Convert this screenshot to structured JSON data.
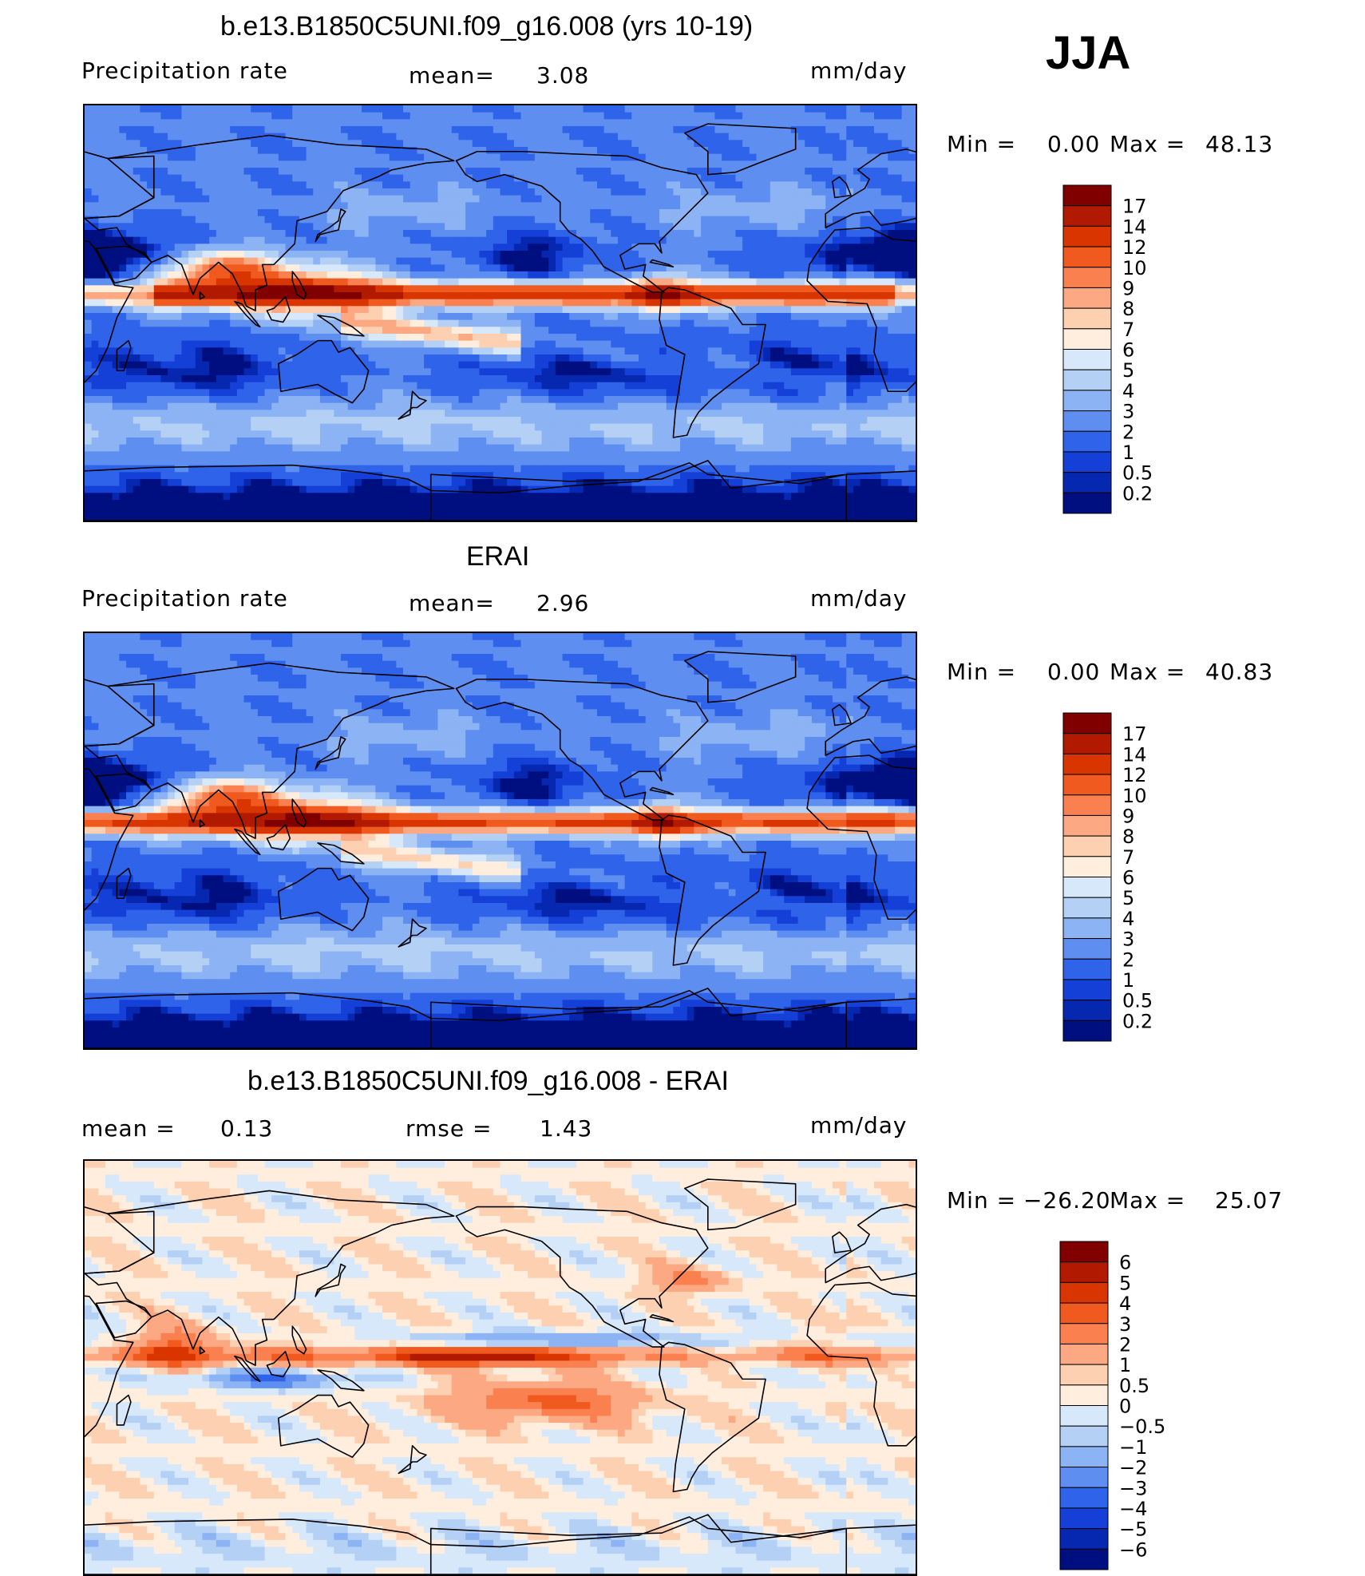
{
  "season": "JJA",
  "panels": [
    {
      "title": "b.e13.B1850C5UNI.f09_g16.008 (yrs 10-19)",
      "left_label": "Precipitation rate",
      "center_label": "mean=",
      "center_value": "3.08",
      "units": "mm/day",
      "min_label": "Min =",
      "min_value": "0.00",
      "max_label": "Max =",
      "max_value": "48.13"
    },
    {
      "title": "ERAI",
      "left_label": "Precipitation rate",
      "center_label": "mean=",
      "center_value": "2.96",
      "units": "mm/day",
      "min_label": "Min =",
      "min_value": "0.00",
      "max_label": "Max =",
      "max_value": "40.83"
    },
    {
      "title": "b.e13.B1850C5UNI.f09_g16.008 - ERAI",
      "left_label": "mean =",
      "left_value": "0.13",
      "center_label": "rmse =",
      "center_value": "1.43",
      "units": "mm/day",
      "min_label": "Min =",
      "min_value": "−26.20",
      "max_label": "Max =",
      "max_value": "25.07"
    }
  ],
  "chart_data": [
    {
      "type": "heatmap",
      "variable": "Precipitation rate",
      "units": "mm/day",
      "mean": 3.08,
      "min": 0.0,
      "max": 48.13,
      "colorbar_levels": [
        "17",
        "14",
        "12",
        "10",
        "9",
        "8",
        "7",
        "6",
        "5",
        "4",
        "3",
        "2",
        "1",
        "0.5",
        "0.2"
      ],
      "colorbar_colors": [
        "#800000",
        "#b21a00",
        "#d93500",
        "#f05a1e",
        "#fb8050",
        "#fca882",
        "#fdd0b2",
        "#ffeedd",
        "#d6e8fa",
        "#b4d0f5",
        "#8cb3f3",
        "#5e8ef0",
        "#2f63ea",
        "#1440d8",
        "#0627b0",
        "#000f80"
      ],
      "features": [
        "ITCZ band along ~10N across Pacific and Atlantic",
        "South Asian monsoon maximum",
        "SPCZ band over South Pacific"
      ]
    },
    {
      "type": "heatmap",
      "variable": "Precipitation rate",
      "units": "mm/day",
      "mean": 2.96,
      "min": 0.0,
      "max": 40.83,
      "colorbar_levels": [
        "17",
        "14",
        "12",
        "10",
        "9",
        "8",
        "7",
        "6",
        "5",
        "4",
        "3",
        "2",
        "1",
        "0.5",
        "0.2"
      ],
      "colorbar_colors": [
        "#800000",
        "#b21a00",
        "#d93500",
        "#f05a1e",
        "#fb8050",
        "#fca882",
        "#fdd0b2",
        "#ffeedd",
        "#d6e8fa",
        "#b4d0f5",
        "#8cb3f3",
        "#5e8ef0",
        "#2f63ea",
        "#1440d8",
        "#0627b0",
        "#000f80"
      ],
      "features": [
        "ITCZ band along ~10N",
        "South Asian monsoon maximum",
        "Central Africa rain belt"
      ]
    },
    {
      "type": "heatmap",
      "variable": "difference",
      "units": "mm/day",
      "mean": 0.13,
      "rmse": 1.43,
      "min": -26.2,
      "max": 25.07,
      "colorbar_levels": [
        "6",
        "5",
        "4",
        "3",
        "2",
        "1",
        "0.5",
        "0",
        "−0.5",
        "−1",
        "−2",
        "−3",
        "−4",
        "−5",
        "−6"
      ],
      "colorbar_colors": [
        "#800000",
        "#b21a00",
        "#d93500",
        "#f05a1e",
        "#fb8050",
        "#fca882",
        "#fdd0b2",
        "#ffeedd",
        "#d6e8fa",
        "#b4d0f5",
        "#8cb3f3",
        "#5e8ef0",
        "#2f63ea",
        "#1440d8",
        "#0627b0",
        "#000f80"
      ]
    }
  ]
}
